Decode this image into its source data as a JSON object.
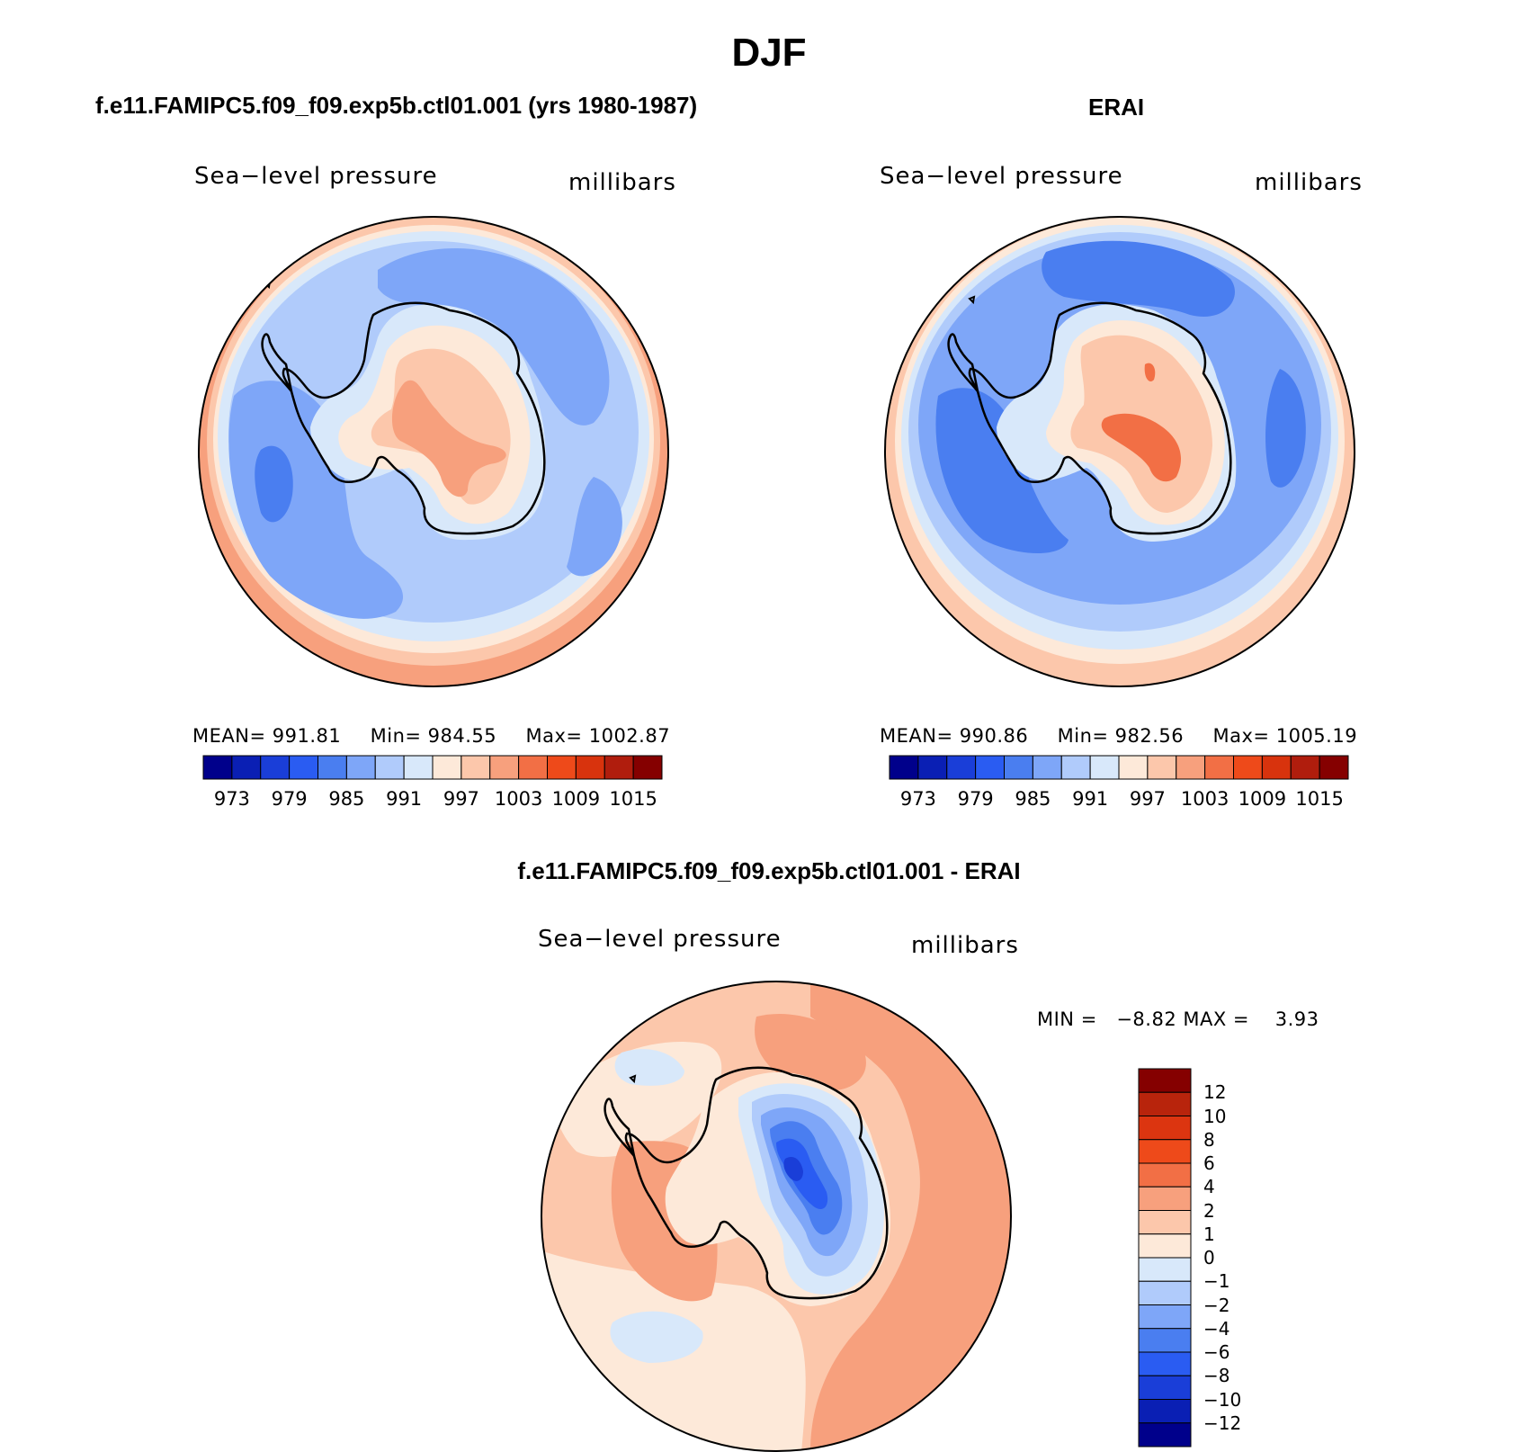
{
  "figure": {
    "title": "DJF",
    "panels": [
      {
        "id": "model",
        "subtitle": "f.e11.FAMIPC5.f09_f09.exp5b.ctl01.001 (yrs 1980-1987)",
        "variable": "Sea−level pressure",
        "units": "millibars",
        "stats": {
          "mean_label": "MEAN=",
          "mean": "991.81",
          "min_label": "Min=",
          "min": "984.55",
          "max_label": "Max=",
          "max": "1002.87"
        }
      },
      {
        "id": "obs",
        "subtitle": "ERAI",
        "variable": "Sea−level pressure",
        "units": "millibars",
        "stats": {
          "mean_label": "MEAN=",
          "mean": "990.86",
          "min_label": "Min=",
          "min": "982.56",
          "max_label": "Max=",
          "max": "1005.19"
        }
      },
      {
        "id": "diff",
        "subtitle": "f.e11.FAMIPC5.f09_f09.exp5b.ctl01.001 - ERAI",
        "variable": "Sea−level pressure",
        "units": "millibars",
        "stats": {
          "min_label": "MIN =",
          "min": "−8.82",
          "max_label": "MAX =",
          "max": "3.93"
        }
      }
    ],
    "colorbar_main": {
      "colors": [
        "#00008b",
        "#0a1fb4",
        "#1a3ed8",
        "#2a5cf2",
        "#4a7ef0",
        "#7ea6f8",
        "#b0cbfb",
        "#d8e8fa",
        "#fde9d9",
        "#fcc7ab",
        "#f7a07d",
        "#f26f45",
        "#ee4a1a",
        "#d8330d",
        "#b01d0d",
        "#850000"
      ],
      "tick_labels": [
        "973",
        "979",
        "985",
        "991",
        "997",
        "1003",
        "1009",
        "1015"
      ]
    },
    "colorbar_diff": {
      "colors_top_to_bottom": [
        "#850000",
        "#b8240c",
        "#dc3510",
        "#ee4a1a",
        "#f26f45",
        "#f7a07d",
        "#fcc7ab",
        "#fde9d9",
        "#d8e8fa",
        "#b0cbfb",
        "#7ea6f8",
        "#4a7ef0",
        "#2a5cf2",
        "#1a3ed8",
        "#0a1fb4",
        "#00008b"
      ],
      "tick_labels": [
        "12",
        "10",
        "8",
        "6",
        "4",
        "2",
        "1",
        "0",
        "−1",
        "−2",
        "−4",
        "−6",
        "−8",
        "−10",
        "−12"
      ]
    },
    "colors": {
      "coast": "#000000",
      "outer_red": "#f7a07d",
      "peach": "#fcc7ab",
      "cream": "#fde9d9",
      "paleblue": "#d8e8fa",
      "lightblue": "#b0cbfb",
      "blue": "#7ea6f8",
      "midblue": "#4a7ef0"
    }
  }
}
